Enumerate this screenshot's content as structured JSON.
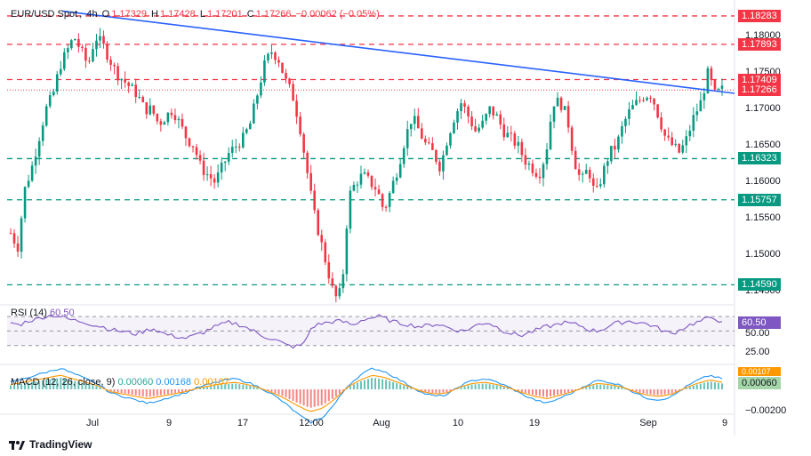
{
  "header": {
    "symbol": "EUR/USD Spot",
    "interval": "4h",
    "open_label": "O",
    "open": "1.17329",
    "high_label": "H",
    "high": "1.17428",
    "low_label": "L",
    "low": "1.17201",
    "close_label": "C",
    "close": "1.17266",
    "change": "−0.00062 (−0.05%)"
  },
  "price_axis": [
    "1.18000",
    "1.17500",
    "1.17000",
    "1.16500",
    "1.16000",
    "1.15500",
    "1.15000",
    "1.14500"
  ],
  "level_tags": [
    {
      "label": "1.18283",
      "value": 1.18283,
      "style": "red-dashed"
    },
    {
      "label": "1.17893",
      "value": 1.17893,
      "style": "red-dashed"
    },
    {
      "label": "1.17409",
      "value": 1.17409,
      "style": "red-dashed"
    },
    {
      "label": "1.17266",
      "value": 1.17266,
      "style": "current"
    },
    {
      "label": "1.16323",
      "value": 1.16323,
      "style": "green-dashed"
    },
    {
      "label": "1.15757",
      "value": 1.15757,
      "style": "green-dashed"
    },
    {
      "label": "1.14590",
      "value": 1.1459,
      "style": "green-dashed"
    }
  ],
  "rsi": {
    "title": "RSI (14)",
    "value_label": "60.50",
    "header_value": "60.50",
    "axis": [
      "50.00",
      "25.00"
    ]
  },
  "macd": {
    "title": "MACD (12, 26, close, 9)",
    "v1": "0.00060",
    "v2": "0.00168",
    "v3": "0.00107",
    "tag_top": "0.00107",
    "tag_bottom": "0.00060",
    "axis": [
      "−0.00200"
    ]
  },
  "time_axis": [
    "Jul",
    "9",
    "17",
    "12:00",
    "Aug",
    "10",
    "19",
    "Sep",
    "9"
  ],
  "brand": "TradingView",
  "colors": {
    "up": "#089981",
    "down": "#f23645",
    "trend": "#2962ff",
    "rsi": "#7e57c2",
    "macd": "#2196f3",
    "signal": "#ff9800",
    "resistance": "#f23645",
    "support": "#089981"
  },
  "chart_data": {
    "type": "candlestick",
    "title": "EUR/USD Spot",
    "interval": "4h",
    "ylim": [
      1.1435,
      1.1838
    ],
    "close_path": [
      1.153,
      1.151,
      1.159,
      1.162,
      1.166,
      1.17,
      1.172,
      1.176,
      1.178,
      1.18,
      1.178,
      1.176,
      1.18,
      1.179,
      1.177,
      1.175,
      1.174,
      1.173,
      1.172,
      1.17,
      1.17,
      1.168,
      1.169,
      1.17,
      1.168,
      1.166,
      1.165,
      1.162,
      1.161,
      1.16,
      1.162,
      1.164,
      1.165,
      1.166,
      1.168,
      1.172,
      1.176,
      1.178,
      1.177,
      1.174,
      1.172,
      1.168,
      1.162,
      1.156,
      1.152,
      1.148,
      1.144,
      1.145,
      1.158,
      1.16,
      1.161,
      1.16,
      1.159,
      1.156,
      1.159,
      1.162,
      1.166,
      1.169,
      1.167,
      1.165,
      1.164,
      1.162,
      1.166,
      1.169,
      1.171,
      1.169,
      1.167,
      1.168,
      1.17,
      1.169,
      1.167,
      1.166,
      1.165,
      1.163,
      1.162,
      1.161,
      1.164,
      1.171,
      1.171,
      1.169,
      1.163,
      1.16,
      1.162,
      1.158,
      1.161,
      1.164,
      1.165,
      1.168,
      1.17,
      1.171,
      1.172,
      1.172,
      1.169,
      1.166,
      1.165,
      1.164,
      1.166,
      1.169,
      1.171,
      1.175,
      1.172,
      1.1727
    ],
    "resistance_levels": [
      1.18283,
      1.17893,
      1.17409
    ],
    "support_levels": [
      1.16323,
      1.15757,
      1.1459
    ],
    "current_price": 1.17266,
    "trendline": {
      "from_price": 1.1835,
      "to_price": 1.1722
    },
    "rsi_path": [
      62,
      58,
      64,
      66,
      70,
      72,
      70,
      66,
      64,
      62,
      58,
      56,
      52,
      50,
      48,
      46,
      50,
      54,
      48,
      44,
      42,
      40,
      44,
      48,
      54,
      58,
      62,
      60,
      56,
      50,
      44,
      40,
      36,
      30,
      28,
      32,
      56,
      60,
      62,
      64,
      62,
      58,
      66,
      68,
      70,
      66,
      62,
      60,
      58,
      56,
      58,
      60,
      56,
      52,
      50,
      54,
      60,
      62,
      56,
      50,
      46,
      44,
      48,
      52,
      56,
      58,
      62,
      60,
      58,
      52,
      50,
      54,
      60,
      62,
      64,
      62,
      60,
      56,
      50,
      46,
      52,
      58,
      62,
      66,
      70,
      60.5
    ],
    "macd_histogram": [
      0.0004,
      0.0006,
      0.0008,
      0.001,
      0.0012,
      0.0009,
      0.0006,
      0.0003,
      -0.0002,
      -0.0004,
      -0.0006,
      -0.0008,
      -0.0006,
      -0.0004,
      -0.0002,
      0.0001,
      0.0003,
      0.0005,
      0.0006,
      0.0004,
      0.0001,
      -0.0003,
      -0.0008,
      -0.0014,
      -0.0019,
      -0.0016,
      -0.0008,
      0.0002,
      0.0008,
      0.0012,
      0.001,
      0.0006,
      0.0002,
      -0.0002,
      -0.0004,
      -0.0003,
      0.0002,
      0.0005,
      0.0006,
      0.0004,
      0.0001,
      -0.0003,
      -0.0006,
      -0.0008,
      -0.0005,
      -0.0002,
      0.0002,
      0.0005,
      0.0004,
      0.0002,
      -0.0002,
      -0.0005,
      -0.0006,
      -0.0004,
      0.0001,
      0.0005,
      0.0008,
      0.0006
    ],
    "xlabels": [
      "Jul",
      "9",
      "17",
      "12:00",
      "Aug",
      "10",
      "19",
      "Sep",
      "9"
    ]
  }
}
